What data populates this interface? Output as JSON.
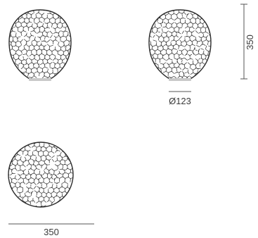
{
  "dimensions": {
    "height_label": "350",
    "base_diameter_label": "Ø123",
    "width_label": "350"
  },
  "colors": {
    "lamp_stroke": "#2b2b2b",
    "base": "#c9c9c9",
    "dimension_line": "#555555",
    "text": "#3a3a3a"
  }
}
